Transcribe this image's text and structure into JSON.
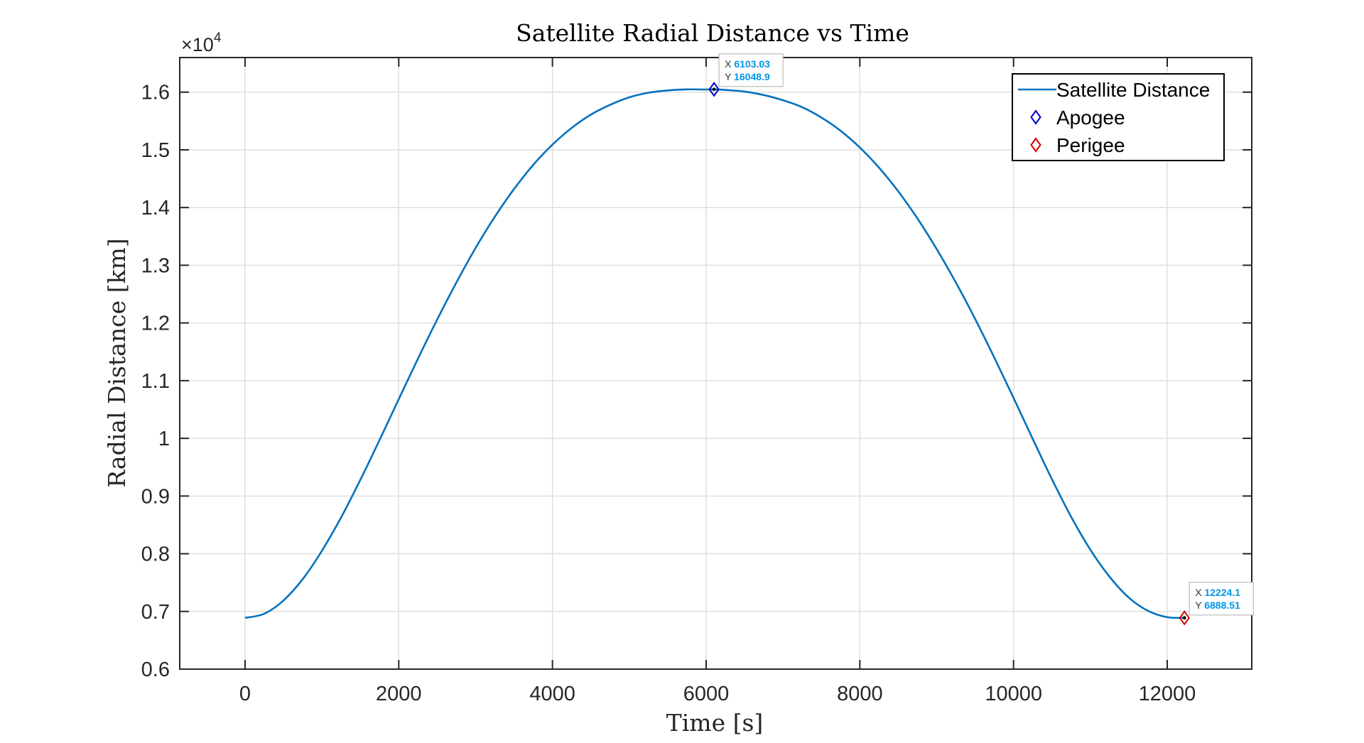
{
  "chart_data": {
    "type": "line",
    "title": "Satellite Radial Distance vs Time",
    "xlabel": "Time [s]",
    "ylabel": "Radial Distance [km]",
    "y_exponent_label": "×10",
    "y_exponent_power": "4",
    "xlim": [
      -850,
      13100
    ],
    "ylim": [
      6000,
      16600
    ],
    "x_ticks": [
      0,
      2000,
      4000,
      6000,
      8000,
      10000,
      12000
    ],
    "x_tick_labels": [
      "0",
      "2000",
      "4000",
      "6000",
      "8000",
      "10000",
      "12000"
    ],
    "y_ticks": [
      6000,
      7000,
      8000,
      9000,
      10000,
      11000,
      12000,
      13000,
      14000,
      15000,
      16000
    ],
    "y_tick_labels": [
      "0.6",
      "0.7",
      "0.8",
      "0.9",
      "1",
      "1.1",
      "1.2",
      "1.3",
      "1.4",
      "1.5",
      "1.6"
    ],
    "grid": true,
    "legend_position": "top-right",
    "colors": {
      "line": "#0072BD",
      "apogee": "#0000CC",
      "perigee": "#D00000",
      "datatip_value": "#0096E6",
      "grid": "#DFDFDF",
      "axis": "#262626"
    },
    "series": [
      {
        "name": "Satellite Distance",
        "x": [
          0,
          250,
          500,
          750,
          1000,
          1250,
          1500,
          1750,
          2000,
          2250,
          2500,
          2750,
          3000,
          3250,
          3500,
          3750,
          4000,
          4250,
          4500,
          4750,
          5000,
          5250,
          5500,
          5750,
          6000,
          6103.03,
          6250,
          6500,
          6750,
          7000,
          7250,
          7500,
          7750,
          8000,
          8250,
          8500,
          8750,
          9000,
          9250,
          9500,
          9750,
          10000,
          10250,
          10500,
          10750,
          11000,
          11250,
          11500,
          11750,
          12000,
          12224.1
        ],
        "y": [
          6888.51,
          6960,
          7190,
          7560,
          8050,
          8630,
          9280,
          9970,
          10680,
          11380,
          12060,
          12700,
          13300,
          13840,
          14320,
          14740,
          15090,
          15380,
          15610,
          15780,
          15910,
          15990,
          16030,
          16048,
          16046,
          16048.9,
          16038,
          16010,
          15950,
          15860,
          15740,
          15560,
          15330,
          15040,
          14690,
          14280,
          13810,
          13280,
          12700,
          12070,
          11400,
          10700,
          9990,
          9290,
          8640,
          8070,
          7600,
          7240,
          7010,
          6900,
          6888.51
        ]
      }
    ],
    "markers": [
      {
        "name": "Apogee",
        "x": 6103.03,
        "y": 16048.9,
        "x_text": "6103.03",
        "y_text": "16048.9"
      },
      {
        "name": "Perigee",
        "x": 12224.1,
        "y": 6888.51,
        "x_text": "12224.1",
        "y_text": "6888.51"
      }
    ],
    "datatip_labels": {
      "x": "X",
      "y": "Y"
    }
  }
}
